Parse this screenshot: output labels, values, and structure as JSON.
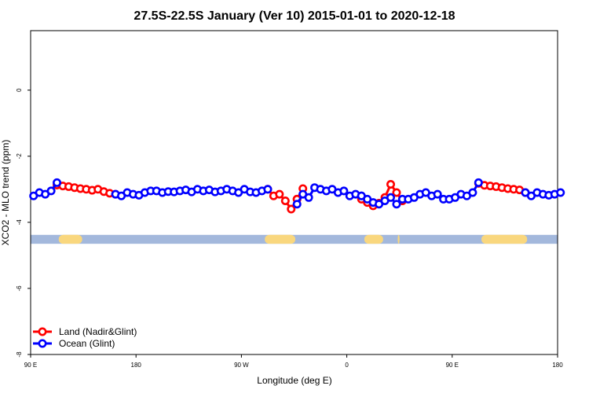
{
  "chart_data": {
    "type": "line",
    "title": "27.5S-22.5S January (Ver 10)   2015-01-01 to 2020-12-18",
    "xlabel": "Longitude (deg E)",
    "ylabel": "XCO2 - MLO trend (ppm)",
    "xlim": [
      90,
      540
    ],
    "ylim": [
      -8,
      1.8
    ],
    "x_ticks": [
      {
        "value": 90,
        "label": "90 E"
      },
      {
        "value": 180,
        "label": "180"
      },
      {
        "value": 270,
        "label": "90 W"
      },
      {
        "value": 360,
        "label": "0"
      },
      {
        "value": 450,
        "label": "90 E"
      },
      {
        "value": 540,
        "label": "180"
      }
    ],
    "y_ticks": [
      {
        "value": 0,
        "label": "0"
      },
      {
        "value": -2,
        "label": "-2"
      },
      {
        "value": -4,
        "label": "-4"
      },
      {
        "value": -6,
        "label": "-6"
      },
      {
        "value": -8,
        "label": "-8"
      }
    ],
    "legend": {
      "placement": "bottom-left"
    },
    "colors": {
      "land": "#ff0000",
      "ocean": "#0000ff",
      "ocean_band": "#a3b8dc",
      "land_band": "#f9d77e"
    },
    "series": [
      {
        "name": "Land (Nadir&Glint)",
        "key": "land",
        "segments": [
          {
            "x": [
              112.5,
              117.5,
              122.5,
              127.5,
              132.5,
              137.5,
              142.5,
              147.5,
              152.5,
              157.5,
              162.5
            ],
            "y": [
              -2.87,
              -2.9,
              -2.92,
              -2.95,
              -2.98,
              -3.0,
              -3.03,
              -3.0,
              -3.07,
              -3.12,
              -3.15
            ]
          },
          {
            "x": [
              292.5,
              297.5,
              302.5,
              307.5,
              312.5,
              317.5
            ],
            "y": [
              -3.0,
              -3.2,
              -3.15,
              -3.35,
              -3.6,
              -3.3
            ]
          },
          {
            "x": [
              317.5,
              322.5
            ],
            "y": [
              -3.3,
              -2.98
            ]
          },
          {
            "x": [
              372.5,
              377.5,
              382.5,
              387.5,
              392.5,
              397.5,
              402.5,
              407.5
            ],
            "y": [
              -3.3,
              -3.4,
              -3.5,
              -3.42,
              -3.25,
              -2.85,
              -3.1,
              -3.35
            ]
          },
          {
            "x": [
              472.5,
              477.5,
              482.5,
              487.5,
              492.5,
              497.5,
              502.5,
              507.5,
              512.5
            ],
            "y": [
              -2.82,
              -2.88,
              -2.9,
              -2.92,
              -2.95,
              -2.98,
              -3.0,
              -3.02,
              -3.1
            ]
          }
        ]
      },
      {
        "name": "Ocean (Glint)",
        "key": "ocean",
        "segments": [
          {
            "x": [
              92.5,
              97.5,
              102.5,
              107.5,
              112.5
            ],
            "y": [
              -3.2,
              -3.1,
              -3.15,
              -3.05,
              -2.8
            ]
          },
          {
            "x": [
              162.5,
              167.5,
              172.5,
              177.5,
              182.5,
              187.5,
              192.5,
              197.5,
              202.5,
              207.5,
              212.5,
              217.5,
              222.5,
              227.5,
              232.5,
              237.5,
              242.5,
              247.5,
              252.5,
              257.5,
              262.5,
              267.5,
              272.5,
              277.5,
              282.5,
              287.5,
              292.5
            ],
            "y": [
              -3.15,
              -3.2,
              -3.1,
              -3.15,
              -3.18,
              -3.1,
              -3.05,
              -3.05,
              -3.1,
              -3.07,
              -3.08,
              -3.05,
              -3.02,
              -3.08,
              -3.0,
              -3.05,
              -3.02,
              -3.08,
              -3.05,
              -3.0,
              -3.05,
              -3.1,
              -3.0,
              -3.08,
              -3.1,
              -3.05,
              -3.0
            ]
          },
          {
            "x": [
              317.5,
              322.5,
              327.5,
              332.5,
              337.5,
              342.5,
              347.5,
              352.5,
              357.5,
              362.5,
              367.5,
              372.5
            ],
            "y": [
              -3.45,
              -3.15,
              -3.25,
              -2.95,
              -3.0,
              -3.05,
              -3.0,
              -3.1,
              -3.05,
              -3.2,
              -3.15,
              -3.2
            ]
          },
          {
            "x": [
              372.5,
              377.5,
              382.5,
              387.5,
              392.5,
              397.5,
              402.5,
              407.5,
              412.5,
              417.5,
              422.5,
              427.5,
              432.5,
              437.5,
              442.5,
              447.5,
              452.5,
              457.5,
              462.5,
              467.5,
              472.5
            ],
            "y": [
              -3.2,
              -3.3,
              -3.4,
              -3.45,
              -3.35,
              -3.25,
              -3.45,
              -3.3,
              -3.3,
              -3.25,
              -3.15,
              -3.1,
              -3.2,
              -3.15,
              -3.3,
              -3.3,
              -3.25,
              -3.15,
              -3.2,
              -3.1,
              -2.8
            ]
          },
          {
            "x": [
              512.5,
              517.5,
              522.5,
              527.5,
              532.5,
              537.5,
              542.5
            ],
            "y": [
              -3.1,
              -3.2,
              -3.1,
              -3.15,
              -3.18,
              -3.15,
              -3.1
            ]
          }
        ]
      }
    ],
    "land_mask": [
      {
        "x0": 114,
        "x1": 134
      },
      {
        "x0": 290,
        "x1": 316
      },
      {
        "x0": 375,
        "x1": 391
      },
      {
        "x0": 403.5,
        "x1": 405
      },
      {
        "x0": 475,
        "x1": 514
      }
    ]
  }
}
